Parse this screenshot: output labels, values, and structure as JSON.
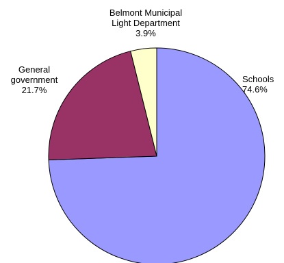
{
  "chart_data": {
    "type": "pie",
    "title": "",
    "slices": [
      {
        "label": "Schools",
        "value": 74.6,
        "value_label": "74.6%",
        "color": "#9999ff"
      },
      {
        "label": "General government",
        "value": 21.7,
        "value_label": "21.7%",
        "color": "#993366"
      },
      {
        "label": "Belmont Municipal Light Department",
        "value": 3.9,
        "value_label": "3.9%",
        "color": "#ffffcc"
      }
    ],
    "labels": {
      "schools": {
        "line1": "Schools",
        "pct": "74.6%"
      },
      "general": {
        "line1": "General",
        "line2": "government",
        "pct": "21.7%"
      },
      "belmont": {
        "line1": "Belmont Municipal",
        "line2": "Light Department",
        "pct": "3.9%"
      }
    },
    "legend": "none"
  }
}
